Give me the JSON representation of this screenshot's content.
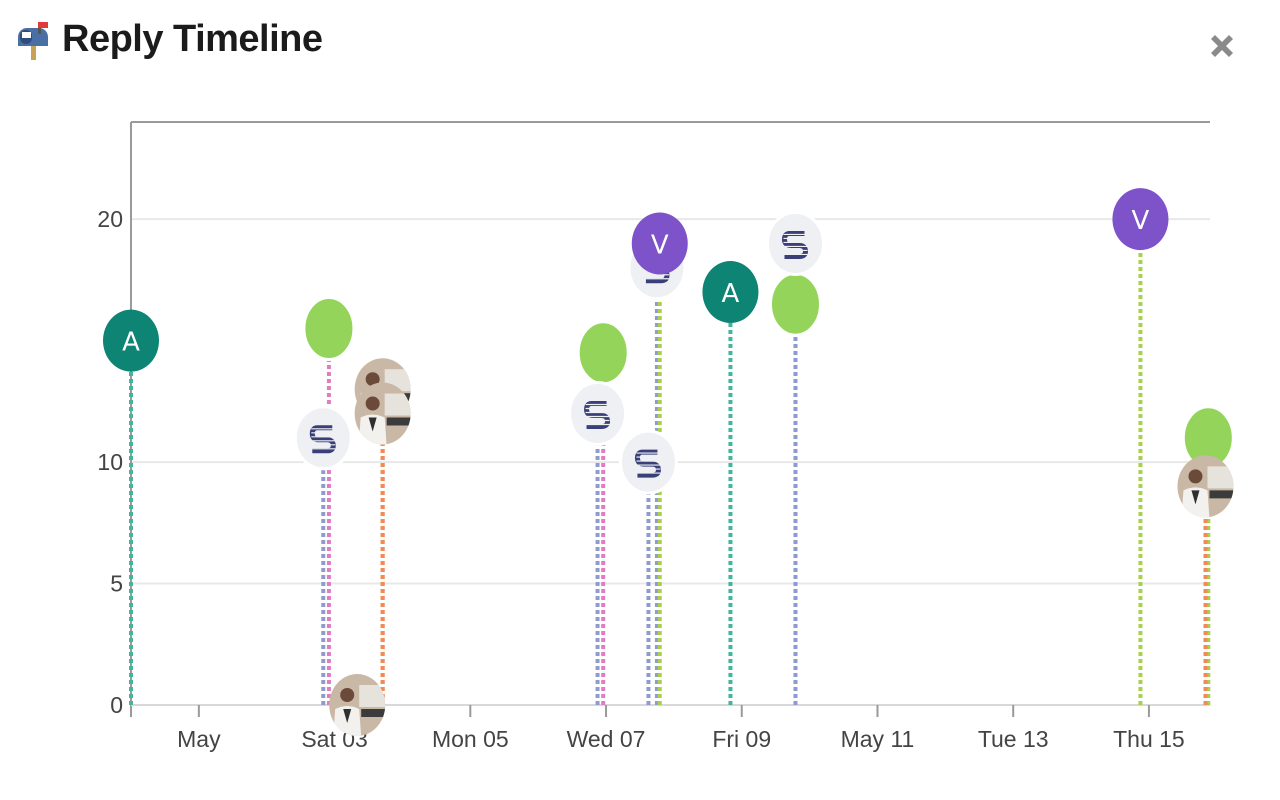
{
  "header": {
    "title": "Reply Timeline",
    "title_icon": "mailbox-icon",
    "close_icon": "close-x-icon"
  },
  "colors": {
    "green": "#94d45b",
    "teal": "#0e8475",
    "purple": "#7e53c9",
    "grey_avatar": "#eef0f3",
    "stripe": "#3a3f7a",
    "axis": "#9a9a9a",
    "grid": "#e8e8e8",
    "photo_bg": "#c9b8a6"
  },
  "chart_data": {
    "type": "scatter",
    "title": "",
    "xlabel": "",
    "ylabel": "",
    "x_ticks": [
      "May",
      "Sat 03",
      "Mon 05",
      "Wed 07",
      "Fri 09",
      "May 11",
      "Tue 13",
      "Thu 15"
    ],
    "y_ticks": [
      0,
      5,
      10,
      20
    ],
    "ylim": [
      0,
      24
    ],
    "grid": true,
    "series": [
      {
        "avatar": "teal-letter",
        "letter": "A",
        "line_color": "#43b59c",
        "points": [
          {
            "x": "2025-04-30T00:00",
            "y": 15
          },
          {
            "x": "2025-05-08T20:00",
            "y": 17
          }
        ]
      },
      {
        "avatar": "green-circle",
        "letter": "",
        "line_color": "#e07cc0",
        "points": [
          {
            "x": "2025-05-02T22:00",
            "y": 15.5
          },
          {
            "x": "2025-05-06T23:00",
            "y": 14.5
          },
          {
            "x": "2025-05-09T19:00",
            "y": 16.5
          }
        ]
      },
      {
        "avatar": "green-circle",
        "letter": "",
        "line_color": "#a9d04a",
        "points": [
          {
            "x": "2025-05-15T21:00",
            "y": 11
          }
        ]
      },
      {
        "avatar": "stripe-logo",
        "letter": "",
        "line_color": "#8e9bd1",
        "points": [
          {
            "x": "2025-05-02T20:00",
            "y": 11
          },
          {
            "x": "2025-05-06T21:00",
            "y": 12
          },
          {
            "x": "2025-05-07T15:00",
            "y": 10
          },
          {
            "x": "2025-05-07T18:00",
            "y": 18
          },
          {
            "x": "2025-05-09T19:00",
            "y": 19
          }
        ]
      },
      {
        "avatar": "purple-letter",
        "letter": "V",
        "line_color": "#a9d04a",
        "points": [
          {
            "x": "2025-05-07T19:00",
            "y": 19
          },
          {
            "x": "2025-05-14T21:00",
            "y": 20
          }
        ]
      },
      {
        "avatar": "photo",
        "letter": "",
        "line_color": "#f38a55",
        "points": [
          {
            "x": "2025-05-03T08:00",
            "y": 0
          },
          {
            "x": "2025-05-03T17:00",
            "y": 13
          },
          {
            "x": "2025-05-03T17:00",
            "y": 12
          },
          {
            "x": "2025-05-15T20:00",
            "y": 9
          }
        ]
      }
    ]
  }
}
